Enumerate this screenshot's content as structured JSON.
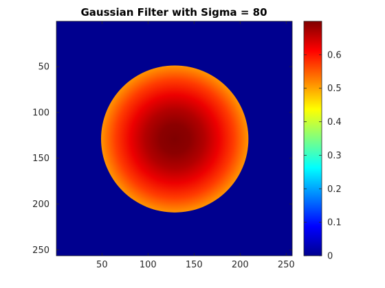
{
  "chart_data": {
    "type": "heatmap",
    "title": "Gaussian Filter with Sigma = 80",
    "xlabel": "",
    "ylabel": "",
    "x_ticks": [
      50,
      100,
      150,
      200,
      250
    ],
    "y_ticks": [
      50,
      100,
      150,
      200,
      250
    ],
    "xlim": [
      0.5,
      256.5
    ],
    "ylim": [
      0.5,
      256.5
    ],
    "y_direction": "reversed",
    "grid": false,
    "colormap": "jet",
    "colorbar": {
      "range": [
        0,
        0.7
      ],
      "ticks": [
        0,
        0.1,
        0.2,
        0.3,
        0.4,
        0.5,
        0.6
      ]
    },
    "field": {
      "size": [
        256,
        256
      ],
      "center": [
        129,
        129
      ],
      "cutoff_radius": 80,
      "sigma": 80,
      "peak_value": 0.7,
      "edge_value": 0.51,
      "outside_value": 0
    },
    "colors": {
      "outside": "#00008f",
      "peak": "#800000"
    }
  }
}
